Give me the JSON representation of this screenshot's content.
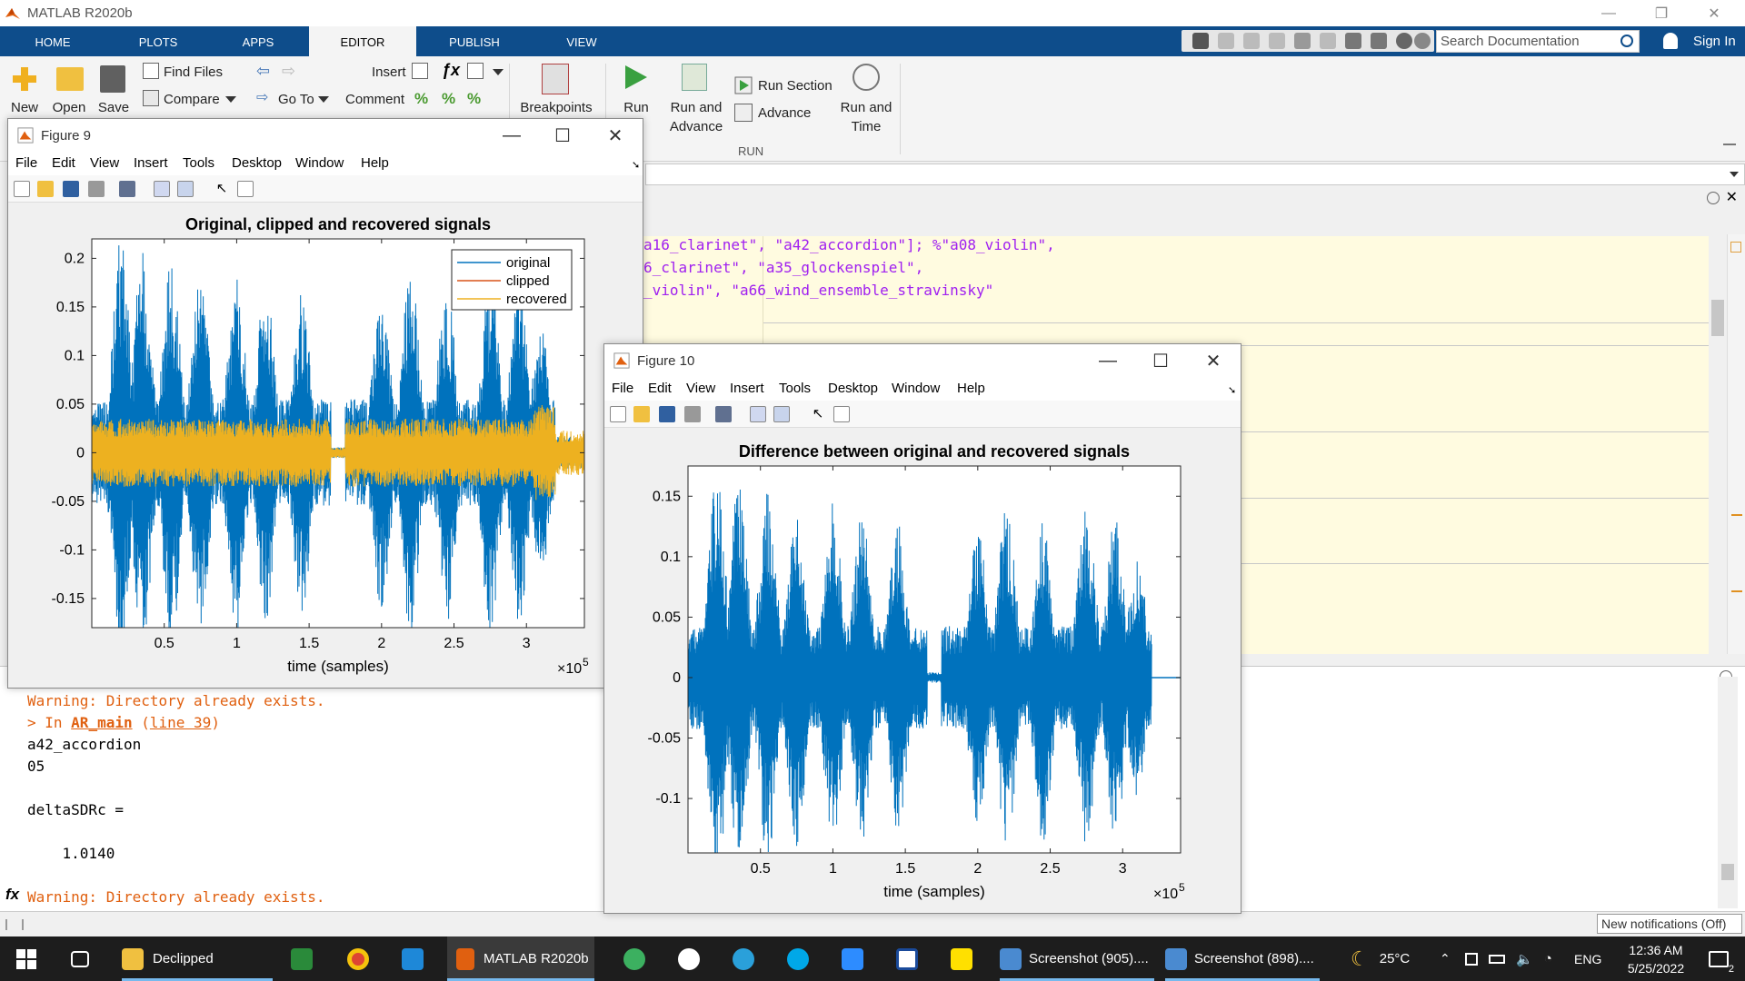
{
  "window": {
    "title": "MATLAB R2020b"
  },
  "tabs": [
    "HOME",
    "PLOTS",
    "APPS",
    "EDITOR",
    "PUBLISH",
    "VIEW"
  ],
  "search": {
    "placeholder": "Search Documentation"
  },
  "signin": "Sign In",
  "ribbon": {
    "new": "New",
    "open": "Open",
    "save": "Save",
    "find_files": "Find Files",
    "compare": "Compare",
    "go_to": "Go To",
    "insert": "Insert",
    "comment": "Comment",
    "breakpoints": "Breakpoints",
    "run": "Run",
    "run_advance_1": "Run and",
    "run_advance_2": "Advance",
    "run_section": "Run Section",
    "advance": "Advance",
    "run_time_1": "Run and",
    "run_time_2": "Time",
    "run_group": "RUN"
  },
  "editor": {
    "lines": [
      "a16_clarinet\", \"a42_accordion\"]; %\"a08_violin\",",
      "6_clarinet\", \"a35_glockenspiel\",",
      "_violin\", \"a66_wind_ensemble_stravinsky\""
    ]
  },
  "command": {
    "warn1": "Warning: Directory already exists.",
    "in_prefix": "> In ",
    "in_func": "AR_main",
    "in_line": "line 39",
    "l1": "a42_accordion",
    "l2": "05",
    "l3": "deltaSDRc =",
    "l4": "    1.0140",
    "warn2": "Warning: Directory already exists.",
    "fx": "fx"
  },
  "notification": "New notifications (Off)",
  "figure_menu": [
    "File",
    "Edit",
    "View",
    "Insert",
    "Tools",
    "Desktop",
    "Window",
    "Help"
  ],
  "fig9": {
    "title": "Figure 9",
    "chart_data": {
      "type": "line",
      "title": "Original, clipped and recovered signals",
      "xlabel": "time (samples)",
      "x_exponent_label": "×10",
      "x_exponent": "5",
      "xlim": [
        0,
        3.4
      ],
      "ylim": [
        -0.18,
        0.22
      ],
      "xticks": [
        "0.5",
        "1",
        "1.5",
        "2",
        "2.5",
        "3"
      ],
      "yticks": [
        "0.2",
        "0.15",
        "0.1",
        "0.05",
        "0",
        "-0.05",
        "-0.1",
        "-0.15"
      ],
      "legend_position": "top-right",
      "series": [
        {
          "name": "original",
          "color": "#0072bd"
        },
        {
          "name": "clipped",
          "color": "#d95319"
        },
        {
          "name": "recovered",
          "color": "#edb120"
        }
      ]
    }
  },
  "fig10": {
    "title": "Figure 10",
    "chart_data": {
      "type": "line",
      "title": "Difference between original and recovered signals",
      "xlabel": "time (samples)",
      "x_exponent_label": "×10",
      "x_exponent": "5",
      "xlim": [
        0,
        3.4
      ],
      "ylim": [
        -0.145,
        0.175
      ],
      "xticks": [
        "0.5",
        "1",
        "1.5",
        "2",
        "2.5",
        "3"
      ],
      "yticks": [
        "0.15",
        "0.1",
        "0.05",
        "0",
        "-0.05",
        "-0.1"
      ],
      "series": [
        {
          "color": "#0072bd"
        }
      ]
    }
  },
  "taskbar": {
    "declipped": "Declipped",
    "matlab": "MATLAB R2020b",
    "screenshot1": "Screenshot (905)....",
    "screenshot2": "Screenshot (898)....",
    "temp": "25°C",
    "lang": "ENG",
    "time": "12:36 AM",
    "date": "5/25/2022",
    "badge": "2"
  }
}
